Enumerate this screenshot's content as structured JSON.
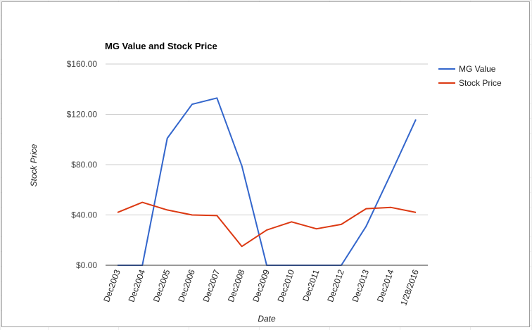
{
  "chart_data": {
    "type": "line",
    "title": "MG Value and Stock Price",
    "xlabel": "Date",
    "ylabel": "Stock Price",
    "categories": [
      "Dec2003",
      "Dec2004",
      "Dec2005",
      "Dec2006",
      "Dec2007",
      "Dec2008",
      "Dec2009",
      "Dec2010",
      "Dec2011",
      "Dec2012",
      "Dec2013",
      "Dec2014",
      "1/28/2016"
    ],
    "y_ticks": [
      "$0.00",
      "$40.00",
      "$80.00",
      "$120.00",
      "$160.00"
    ],
    "ylim": [
      0,
      160
    ],
    "grid": true,
    "legend_position": "right",
    "series": [
      {
        "name": "MG Value",
        "color": "#3366cc",
        "values": [
          0,
          0,
          101,
          128,
          133,
          79,
          0,
          0,
          0,
          0,
          31,
          73,
          116
        ]
      },
      {
        "name": "Stock Price",
        "color": "#dc3912",
        "values": [
          42,
          50,
          44,
          40,
          39.5,
          15,
          28,
          34.5,
          29,
          32.5,
          45,
          46,
          42
        ]
      }
    ]
  }
}
